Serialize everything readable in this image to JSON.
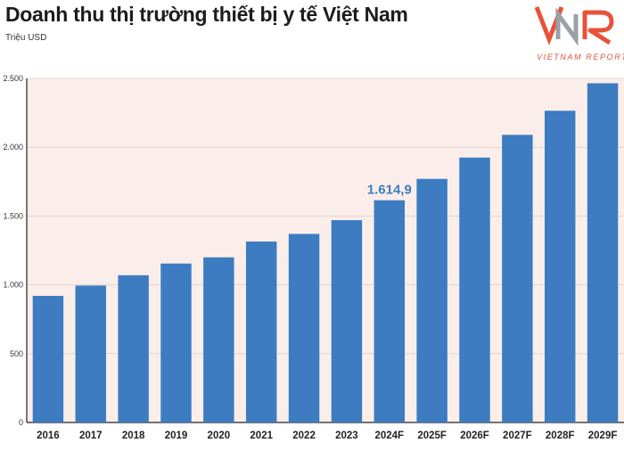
{
  "header": {
    "title": "Doanh thu thị trường thiết bị y tế Việt Nam",
    "unit": "Triệu USD"
  },
  "logo": {
    "mark": "VNR",
    "caption": "VIETNAM REPORT",
    "colors": {
      "red": "#e8523a",
      "grey": "#9aa0a6"
    }
  },
  "colors": {
    "bar": "#3d7cc0",
    "plot_background": "#fbeeea",
    "grid": "#e3d6d2",
    "axis": "#222222",
    "highlight_label": "#3d7cc0"
  },
  "chart_data": {
    "type": "bar",
    "title": "Doanh thu thị trường thiết bị y tế Việt Nam",
    "ylabel": "Triệu USD",
    "xlabel": "",
    "categories": [
      "2016",
      "2017",
      "2018",
      "2019",
      "2020",
      "2021",
      "2022",
      "2023",
      "2024F",
      "2025F",
      "2026F",
      "2027F",
      "2028F",
      "2029F"
    ],
    "values": [
      920,
      995,
      1070,
      1155,
      1200,
      1315,
      1370,
      1470,
      1614.9,
      1770,
      1925,
      2090,
      2265,
      2465
    ],
    "ylim": [
      0,
      2500
    ],
    "yticks": [
      0,
      500,
      1000,
      1500,
      2000,
      2500
    ],
    "ytick_labels": [
      "0",
      "500",
      "1.000",
      "1.500",
      "2.000",
      "2.500"
    ],
    "grid": true,
    "legend": "none",
    "annotations": [
      {
        "category": "2024F",
        "text": "1.614,9"
      }
    ]
  }
}
